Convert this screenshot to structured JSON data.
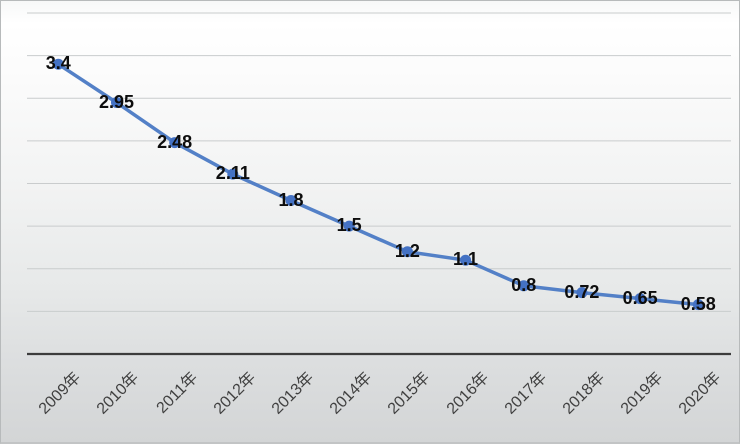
{
  "chart_data": {
    "type": "line",
    "title": "",
    "xlabel": "",
    "ylabel": "",
    "categories": [
      "2009年",
      "2010年",
      "2011年",
      "2012年",
      "2013年",
      "2014年",
      "2015年",
      "2016年",
      "2017年",
      "2018年",
      "2019年",
      "2020年"
    ],
    "series": [
      {
        "name": "",
        "values": [
          3.4,
          2.95,
          2.48,
          2.11,
          1.8,
          1.5,
          1.2,
          1.1,
          0.8,
          0.72,
          0.65,
          0.58
        ],
        "data_labels": [
          "3.4",
          "2.95",
          "2.48",
          "2.11",
          "1.8",
          "1.5",
          "1.2",
          "1.1",
          "0.8",
          "0.72",
          "0.65",
          "0.58"
        ]
      }
    ],
    "ylim": [
      0,
      4
    ],
    "gridline_step": 0.5,
    "grid": true,
    "legend": false,
    "y_axis_labels_visible": false,
    "x_label_rotation_deg": 45,
    "data_label_position": "center",
    "colors": {
      "line": "#5380c7",
      "marker": "#4472c4",
      "data_label": "#0d0d0d",
      "tick_label": "#404040",
      "gridline": "#c9cccd",
      "axis_line": "#3c3c3c"
    }
  }
}
